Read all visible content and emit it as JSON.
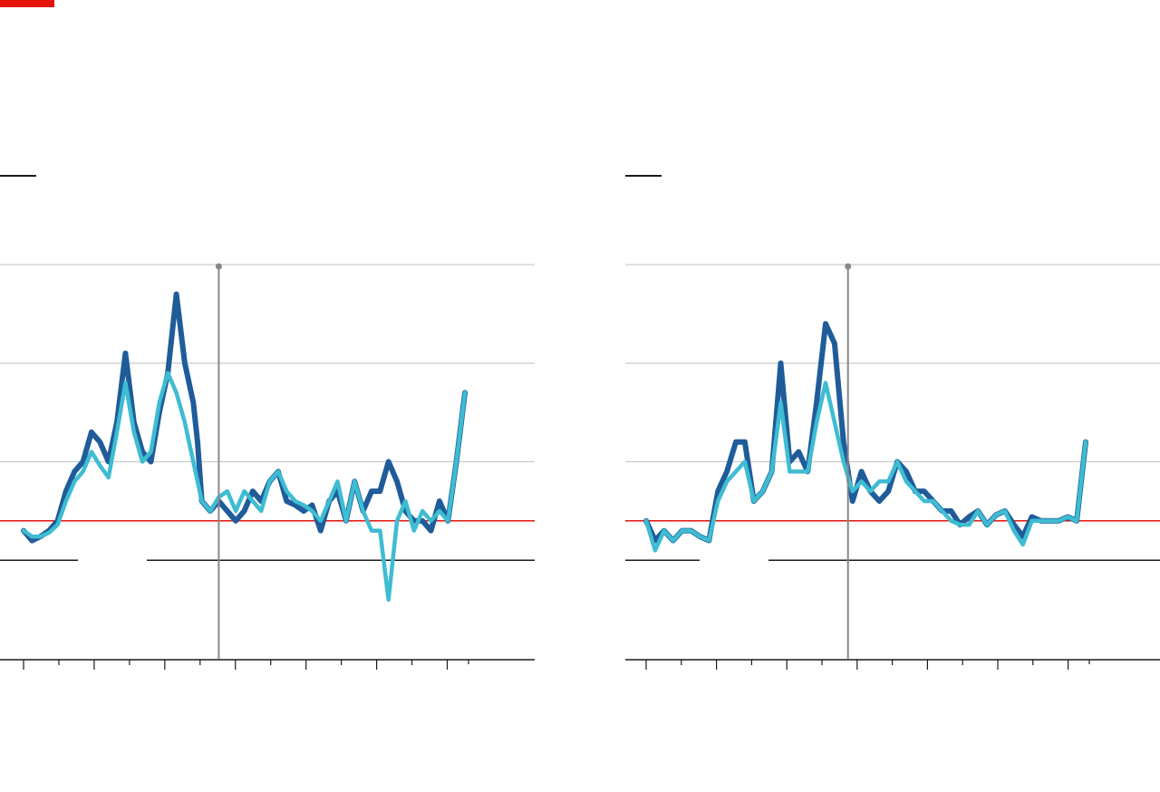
{
  "colors": {
    "accent": "#e3120b",
    "headline_series": "#1f5c99",
    "core_series": "#3ebcd2",
    "target_line": "#e3120b",
    "grid": "#cccccc",
    "marker": "#888888"
  },
  "chart_data": [
    {
      "type": "line",
      "title": "",
      "xlabel": "",
      "ylabel": "",
      "ylim": [
        -5,
        15
      ],
      "yticks": [
        -5,
        0,
        5,
        10,
        15
      ],
      "target": 2,
      "xlim": [
        1970,
        2045
      ],
      "xticks": [
        1970,
        1975,
        1980,
        1985,
        1990,
        1995,
        2000,
        2005,
        2010,
        2015,
        2020,
        2025,
        2030,
        2035,
        2038
      ],
      "event_x": 1993,
      "series": [
        {
          "name": "",
          "color": "#1f5c99",
          "x": [
            1970,
            1971,
            1972,
            1973,
            1974,
            1975,
            1976,
            1977,
            1978,
            1979,
            1980,
            1981,
            1982,
            1983,
            1984,
            1985,
            1986,
            1987,
            1988,
            1989,
            1990,
            1990.5,
            1991,
            1992,
            1993,
            1994,
            1995,
            1996,
            1997,
            1998,
            1999,
            2000,
            2001,
            2002,
            2003,
            2004,
            2005,
            2006,
            2007,
            2008,
            2009,
            2010,
            2011,
            2012,
            2013,
            2014,
            2015,
            2016,
            2017,
            2018,
            2019,
            2020,
            2021,
            2022
          ],
          "values": [
            1.5,
            1,
            1.2,
            1.5,
            2,
            3.5,
            4.5,
            5,
            6.5,
            6,
            5,
            7,
            10.5,
            7,
            5.5,
            5,
            7.5,
            9.5,
            13.5,
            10,
            8,
            6,
            3,
            2.5,
            3,
            2.5,
            2,
            2.5,
            3.5,
            3,
            4,
            4.5,
            3,
            2.8,
            2.5,
            2.8,
            1.5,
            3,
            3.5,
            2,
            4,
            2.5,
            3.5,
            3.5,
            5,
            4,
            2.5,
            2,
            2,
            1.5,
            3,
            2,
            5,
            8.5
          ]
        },
        {
          "name": "",
          "color": "#3ebcd2",
          "x": [
            1970,
            1971,
            1972,
            1973,
            1974,
            1975,
            1976,
            1977,
            1978,
            1979,
            1980,
            1981,
            1982,
            1983,
            1984,
            1985,
            1986,
            1987,
            1988,
            1989,
            1990,
            1990.5,
            1991,
            1992,
            1993,
            1994,
            1995,
            1996,
            1997,
            1998,
            1999,
            2000,
            2001,
            2002,
            2003,
            2004,
            2005,
            2006,
            2007,
            2008,
            2009,
            2010,
            2011,
            2012,
            2013,
            2014,
            2015,
            2016,
            2017,
            2018,
            2019,
            2020,
            2021,
            2022
          ],
          "values": [
            1.5,
            1.2,
            1.2,
            1.4,
            1.8,
            3,
            4,
            4.5,
            5.5,
            4.8,
            4.2,
            6.5,
            9,
            6.5,
            5,
            5.5,
            8,
            9.5,
            8.5,
            7,
            5,
            4,
            3,
            2.5,
            3.2,
            3.5,
            2.5,
            3.5,
            3,
            2.5,
            4,
            4.5,
            3.5,
            3,
            2.8,
            2.5,
            2,
            3,
            4,
            2,
            4,
            2.5,
            1.5,
            1.5,
            -2,
            2,
            3,
            1.5,
            2.5,
            2,
            2.5,
            2,
            5,
            8.5
          ]
        }
      ]
    },
    {
      "type": "line",
      "title": "",
      "xlabel": "",
      "ylabel": "",
      "ylim": [
        -5,
        15
      ],
      "yticks": [
        -5,
        0,
        5,
        10,
        15
      ],
      "target": 2,
      "xlim": [
        1970,
        2045
      ],
      "xticks": [
        1973,
        1978,
        1983,
        1988,
        1993,
        1998,
        2003,
        2008,
        2013,
        2018,
        2023,
        2028,
        2033,
        2038,
        2040
      ],
      "event_x": 1995.5,
      "series": [
        {
          "name": "",
          "color": "#1f5c99",
          "x": [
            1973,
            1974,
            1975,
            1976,
            1977,
            1978,
            1979,
            1980,
            1981,
            1982,
            1983,
            1984,
            1985,
            1986,
            1987,
            1988,
            1989,
            1990,
            1991,
            1992,
            1993,
            1994,
            1995,
            1996,
            1997,
            1998,
            1999,
            2000,
            2001,
            2002,
            2003,
            2004,
            2005,
            2006,
            2007,
            2008,
            2009,
            2010,
            2011,
            2012,
            2013,
            2014,
            2015,
            2016,
            2017,
            2018,
            2019,
            2020,
            2021,
            2022
          ],
          "values": [
            2,
            1,
            1.5,
            1,
            1.5,
            1.5,
            1.2,
            1,
            3.5,
            4.5,
            6,
            6,
            3,
            3.5,
            4.5,
            10,
            5,
            5.5,
            4.5,
            8,
            12,
            11,
            6,
            3,
            4.5,
            3.5,
            3,
            3.5,
            5,
            4.5,
            3.5,
            3.5,
            3,
            2.5,
            2.5,
            1.8,
            2.2,
            2.5,
            1.8,
            2.3,
            2.5,
            1.8,
            1.2,
            2.2,
            2,
            2,
            2,
            2.2,
            2,
            6
          ]
        },
        {
          "name": "",
          "color": "#3ebcd2",
          "x": [
            1973,
            1974,
            1975,
            1976,
            1977,
            1978,
            1979,
            1980,
            1981,
            1982,
            1983,
            1984,
            1985,
            1986,
            1987,
            1988,
            1989,
            1990,
            1991,
            1992,
            1993,
            1994,
            1995,
            1996,
            1997,
            1998,
            1999,
            2000,
            2001,
            2002,
            2003,
            2004,
            2005,
            2006,
            2007,
            2008,
            2009,
            2010,
            2011,
            2012,
            2013,
            2014,
            2015,
            2016,
            2017,
            2018,
            2019,
            2020,
            2021,
            2022
          ],
          "values": [
            2,
            0.5,
            1.5,
            1,
            1.5,
            1.5,
            1.2,
            1,
            3,
            4,
            4.5,
            5,
            3,
            3.5,
            4.5,
            8,
            4.5,
            4.5,
            4.5,
            7,
            9,
            7,
            5,
            3.5,
            4,
            3.5,
            4,
            4,
            5,
            4,
            3.5,
            3,
            3,
            2.5,
            2,
            1.8,
            1.8,
            2.5,
            1.8,
            2.3,
            2.5,
            1.5,
            0.8,
            2,
            2,
            2,
            2,
            2.2,
            2,
            6
          ]
        }
      ]
    }
  ]
}
